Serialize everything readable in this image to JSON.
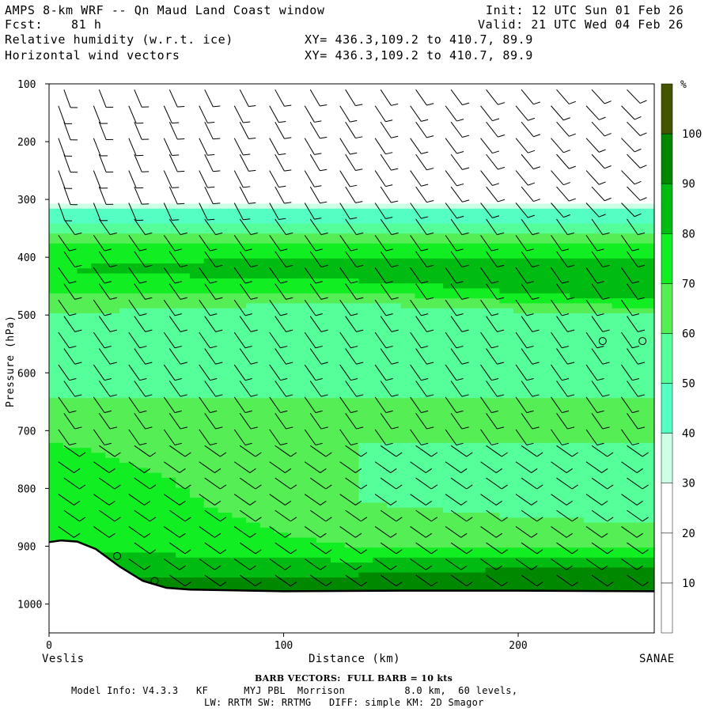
{
  "header": {
    "title": "AMPS 8-km WRF -- Qn Maud Land Coast window",
    "init": "Init: 12 UTC Sun 01 Feb 26",
    "fcst_label": "Fcst:",
    "fcst_value": "81 h",
    "valid": "Valid: 21 UTC Wed 04 Feb 26",
    "field1": "Relative humidity (w.r.t. ice)",
    "field2": "Horizontal wind vectors",
    "xy1": "XY= 436.3,109.2 to 410.7, 89.9",
    "xy2": "XY= 436.3,109.2 to 410.7, 89.9"
  },
  "footer": {
    "barb_note": "BARB VECTORS:  FULL BARB = 10 kts",
    "model_info": "Model Info: V4.3.3   KF      MYJ PBL  Morrison          8.0 km,  60 levels,",
    "physics": "LW: RRTM SW: RRTMG   DIFF: simple KM: 2D Smagor"
  },
  "chart_data": {
    "type": "heatmap",
    "title": "Relative humidity (w.r.t. ice) and horizontal wind vectors",
    "xlabel": "Distance (km)",
    "ylabel": "Pressure (hPa)",
    "x_ticks": [
      0,
      100,
      200
    ],
    "y_ticks": [
      100,
      200,
      300,
      400,
      500,
      600,
      700,
      800,
      900,
      1000
    ],
    "xlim": [
      0,
      258
    ],
    "ylim": [
      1050,
      100
    ],
    "x_endpoint_labels": [
      "Veslis",
      "SANAE"
    ],
    "colorbar": {
      "unit": "%",
      "levels": [
        10,
        20,
        30,
        40,
        50,
        60,
        70,
        80,
        90,
        100
      ],
      "colors": [
        "#ffffff",
        "#ffffff",
        "#ffffff",
        "#ccffe6",
        "#55ffc4",
        "#55ff99",
        "#55ee55",
        "#11ee22",
        "#00bb11",
        "#008800",
        "#445500"
      ]
    },
    "rh_profile": {
      "description_levels_hPa": [
        300,
        320,
        340,
        380,
        420,
        460,
        500,
        560,
        640,
        720,
        820,
        900,
        950
      ],
      "western_rh": [
        20,
        40,
        50,
        70,
        80,
        70,
        60,
        60,
        60,
        70,
        80,
        80,
        90
      ],
      "central_rh": [
        20,
        40,
        50,
        70,
        90,
        70,
        50,
        50,
        60,
        60,
        60,
        70,
        90
      ],
      "eastern_rh": [
        20,
        40,
        50,
        70,
        90,
        90,
        60,
        50,
        60,
        60,
        50,
        70,
        100
      ]
    },
    "terrain_pressure_hPa": {
      "x_km": [
        0,
        5,
        12,
        20,
        30,
        40,
        50,
        60,
        100,
        150,
        200,
        258
      ],
      "p": [
        893,
        890,
        892,
        905,
        935,
        960,
        972,
        975,
        978,
        977,
        977,
        978
      ]
    },
    "markers_circle": [
      {
        "x_km": 29,
        "p": 917
      },
      {
        "x_km": 45,
        "p": 960
      },
      {
        "x_km": 236,
        "p": 545
      },
      {
        "x_km": 253,
        "p": 545
      }
    ]
  }
}
